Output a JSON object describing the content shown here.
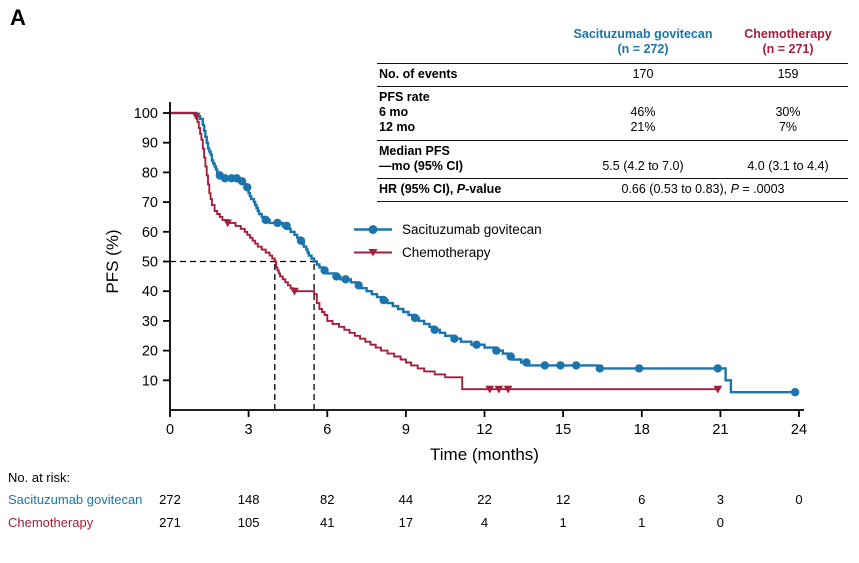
{
  "panel_label": "A",
  "colors": {
    "sg": "#1b75ac",
    "chemo": "#a51e3c",
    "axis": "#000000"
  },
  "stats_table": {
    "headers": {
      "sg_line1": "Sacituzumab govitecan",
      "sg_line2": "(n = 272)",
      "chemo_line1": "Chemotherapy",
      "chemo_line2": "(n = 271)"
    },
    "events": {
      "label": "No. of events",
      "sg": "170",
      "chemo": "159"
    },
    "pfs_rate_header": "PFS rate",
    "rate_6mo": {
      "label": "6 mo",
      "sg": "46%",
      "chemo": "30%"
    },
    "rate_12mo": {
      "label": "12 mo",
      "sg": "21%",
      "chemo": "7%"
    },
    "median": {
      "label_line1": "Median PFS",
      "label_line2": "—mo (95% CI)",
      "sg": "5.5 (4.2 to 7.0)",
      "chemo": "4.0 (3.1 to 4.4)"
    },
    "hr": {
      "label_prefix": "HR (95% CI), ",
      "label_italic": "P",
      "label_suffix": "-value",
      "value_prefix": "0.66 (0.53 to 0.83), ",
      "value_italic": "P",
      "value_suffix": " = .0003"
    }
  },
  "legend": {
    "items": [
      {
        "label": "Sacituzumab govitecan",
        "marker": "circle"
      },
      {
        "label": "Chemotherapy",
        "marker": "triangle-down"
      }
    ]
  },
  "risk_table": {
    "title": "No. at risk:",
    "rows": [
      {
        "label": "Sacituzumab govitecan",
        "color_key": "sg",
        "months": [
          0,
          3,
          6,
          9,
          12,
          15,
          18,
          21,
          24
        ],
        "counts": [
          272,
          148,
          82,
          44,
          22,
          12,
          6,
          3,
          0
        ]
      },
      {
        "label": "Chemotherapy",
        "color_key": "chemo",
        "months": [
          0,
          3,
          6,
          9,
          12,
          15,
          18,
          21
        ],
        "counts": [
          271,
          105,
          41,
          17,
          4,
          1,
          1,
          0
        ]
      }
    ]
  },
  "chart_data": {
    "type": "line",
    "variant": "kaplan_meier_step",
    "title": "",
    "xlabel": "Time (months)",
    "ylabel": "PFS (%)",
    "xlim": [
      0,
      24
    ],
    "ylim": [
      0,
      100
    ],
    "xticks": [
      0,
      3,
      6,
      9,
      12,
      15,
      18,
      21,
      24
    ],
    "yticks": [
      10,
      20,
      30,
      40,
      50,
      60,
      70,
      80,
      90,
      100
    ],
    "grid": false,
    "legend_position": "inside-left",
    "median_guides": {
      "y": 50,
      "x": [
        4.0,
        5.5
      ]
    },
    "series": [
      {
        "name": "Sacituzumab govitecan",
        "color_key": "sg",
        "marker": "circle",
        "n": 272,
        "events": 170,
        "median_pfs_months": 5.5,
        "steps": [
          [
            0,
            100
          ],
          [
            0.8,
            100
          ],
          [
            1.0,
            99
          ],
          [
            1.15,
            98
          ],
          [
            1.25,
            96
          ],
          [
            1.3,
            94
          ],
          [
            1.35,
            92
          ],
          [
            1.4,
            90
          ],
          [
            1.45,
            88
          ],
          [
            1.5,
            87
          ],
          [
            1.55,
            86
          ],
          [
            1.6,
            84
          ],
          [
            1.65,
            83
          ],
          [
            1.7,
            82
          ],
          [
            1.75,
            81
          ],
          [
            1.8,
            80
          ],
          [
            1.9,
            79
          ],
          [
            2.0,
            78
          ],
          [
            2.6,
            77
          ],
          [
            2.8,
            76
          ],
          [
            2.9,
            75
          ],
          [
            3.0,
            73
          ],
          [
            3.05,
            72
          ],
          [
            3.1,
            71
          ],
          [
            3.2,
            70
          ],
          [
            3.25,
            69
          ],
          [
            3.3,
            68
          ],
          [
            3.35,
            67
          ],
          [
            3.4,
            66
          ],
          [
            3.5,
            65
          ],
          [
            3.6,
            64
          ],
          [
            3.8,
            63
          ],
          [
            4.3,
            62
          ],
          [
            4.5,
            61
          ],
          [
            4.6,
            60
          ],
          [
            4.75,
            59
          ],
          [
            4.85,
            58
          ],
          [
            4.95,
            57
          ],
          [
            5.05,
            56
          ],
          [
            5.1,
            55
          ],
          [
            5.2,
            54
          ],
          [
            5.25,
            53
          ],
          [
            5.3,
            52
          ],
          [
            5.4,
            51
          ],
          [
            5.5,
            50
          ],
          [
            5.6,
            49
          ],
          [
            5.7,
            48
          ],
          [
            5.85,
            47
          ],
          [
            6.0,
            46
          ],
          [
            6.3,
            45
          ],
          [
            6.5,
            44
          ],
          [
            6.9,
            43
          ],
          [
            7.1,
            42
          ],
          [
            7.3,
            41
          ],
          [
            7.5,
            40
          ],
          [
            7.7,
            39
          ],
          [
            7.9,
            38
          ],
          [
            8.1,
            37
          ],
          [
            8.3,
            36
          ],
          [
            8.5,
            35
          ],
          [
            8.7,
            34
          ],
          [
            8.9,
            33
          ],
          [
            9.1,
            32
          ],
          [
            9.3,
            31
          ],
          [
            9.5,
            30
          ],
          [
            9.7,
            29
          ],
          [
            9.9,
            28
          ],
          [
            10.1,
            27
          ],
          [
            10.3,
            26
          ],
          [
            10.5,
            25
          ],
          [
            10.8,
            24
          ],
          [
            11.1,
            23
          ],
          [
            11.5,
            22
          ],
          [
            12.0,
            21
          ],
          [
            12.4,
            20
          ],
          [
            12.7,
            19
          ],
          [
            12.9,
            18
          ],
          [
            13.1,
            17
          ],
          [
            13.4,
            16
          ],
          [
            13.7,
            15
          ],
          [
            16.3,
            14
          ],
          [
            21.2,
            10
          ],
          [
            21.4,
            6
          ],
          [
            23.9,
            6
          ]
        ],
        "censor_times": [
          1.9,
          2.1,
          2.35,
          2.55,
          2.75,
          2.95,
          3.65,
          4.1,
          4.45,
          5.0,
          5.9,
          6.35,
          6.7,
          7.2,
          8.15,
          9.35,
          10.1,
          10.85,
          11.7,
          12.45,
          13.0,
          13.6,
          14.3,
          14.9,
          15.5,
          16.4,
          17.9,
          20.9,
          23.85
        ]
      },
      {
        "name": "Chemotherapy",
        "color_key": "chemo",
        "marker": "triangle_down",
        "n": 271,
        "events": 159,
        "median_pfs_months": 4.0,
        "steps": [
          [
            0,
            100
          ],
          [
            0.85,
            100
          ],
          [
            0.95,
            99
          ],
          [
            1.05,
            97
          ],
          [
            1.1,
            95
          ],
          [
            1.15,
            93
          ],
          [
            1.2,
            91
          ],
          [
            1.25,
            88
          ],
          [
            1.3,
            85
          ],
          [
            1.35,
            82
          ],
          [
            1.4,
            79
          ],
          [
            1.45,
            76
          ],
          [
            1.5,
            73
          ],
          [
            1.55,
            71
          ],
          [
            1.6,
            69
          ],
          [
            1.7,
            67
          ],
          [
            1.8,
            66
          ],
          [
            1.9,
            65
          ],
          [
            2.0,
            64
          ],
          [
            2.2,
            63
          ],
          [
            2.5,
            62
          ],
          [
            2.7,
            61
          ],
          [
            2.85,
            60
          ],
          [
            2.95,
            59
          ],
          [
            3.05,
            58
          ],
          [
            3.15,
            57
          ],
          [
            3.25,
            56
          ],
          [
            3.35,
            55
          ],
          [
            3.5,
            54
          ],
          [
            3.65,
            53
          ],
          [
            3.8,
            52
          ],
          [
            3.9,
            51
          ],
          [
            4.0,
            50
          ],
          [
            4.05,
            48
          ],
          [
            4.1,
            47
          ],
          [
            4.15,
            46
          ],
          [
            4.2,
            45
          ],
          [
            4.3,
            44
          ],
          [
            4.4,
            43
          ],
          [
            4.5,
            42
          ],
          [
            4.6,
            41
          ],
          [
            4.7,
            40
          ],
          [
            5.5,
            39
          ],
          [
            5.6,
            36
          ],
          [
            5.7,
            34
          ],
          [
            5.8,
            33
          ],
          [
            5.9,
            32
          ],
          [
            6.0,
            30
          ],
          [
            6.2,
            29
          ],
          [
            6.45,
            28
          ],
          [
            6.65,
            27
          ],
          [
            6.85,
            26
          ],
          [
            7.05,
            25
          ],
          [
            7.25,
            24
          ],
          [
            7.45,
            23
          ],
          [
            7.65,
            22
          ],
          [
            7.85,
            21
          ],
          [
            8.05,
            20
          ],
          [
            8.3,
            19
          ],
          [
            8.55,
            18
          ],
          [
            8.8,
            17
          ],
          [
            9.0,
            16
          ],
          [
            9.2,
            15
          ],
          [
            9.45,
            14
          ],
          [
            9.7,
            13
          ],
          [
            10.1,
            12
          ],
          [
            10.5,
            11
          ],
          [
            11.15,
            7
          ],
          [
            21.0,
            7
          ]
        ],
        "censor_times": [
          1.0,
          2.2,
          4.75,
          12.2,
          12.55,
          12.9,
          20.9
        ]
      }
    ]
  }
}
